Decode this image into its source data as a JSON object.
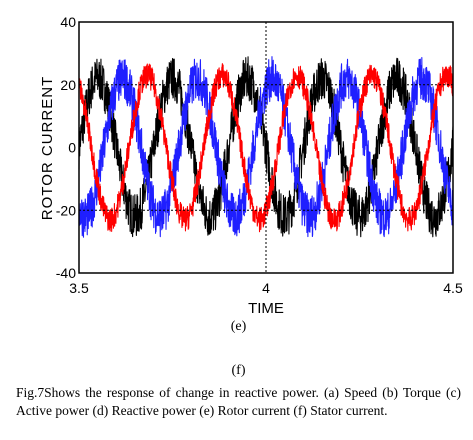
{
  "chart_data": {
    "type": "line",
    "title": "",
    "xlabel": "TIME",
    "ylabel": "ROTOR CURRENT",
    "xlim": [
      3.5,
      4.5
    ],
    "ylim": [
      -40,
      40
    ],
    "x_ticks": [
      "3.5",
      "4",
      "4.5"
    ],
    "y_ticks": [
      "40",
      "20",
      "0",
      "-20",
      "-40"
    ],
    "grid": "dashed lines at x=4 and y=±20",
    "frequency_hz": 5,
    "series": [
      {
        "color": "#000000",
        "amplitude": 22,
        "noise": 7,
        "phase_deg": 0
      },
      {
        "color": "#1f1fff",
        "amplitude": 22,
        "noise": 7,
        "phase_deg": 240
      },
      {
        "color": "#ff0000",
        "amplitude": 23,
        "noise": 4,
        "phase_deg": 120
      }
    ]
  },
  "labels": {
    "sub_e": "(e)",
    "sub_f": "(f)",
    "caption": "Fig.7Shows the response of change in reactive power. (a) Speed (b) Torque (c) Active power (d) Reactive power (e) Rotor current (f) Stator current."
  }
}
